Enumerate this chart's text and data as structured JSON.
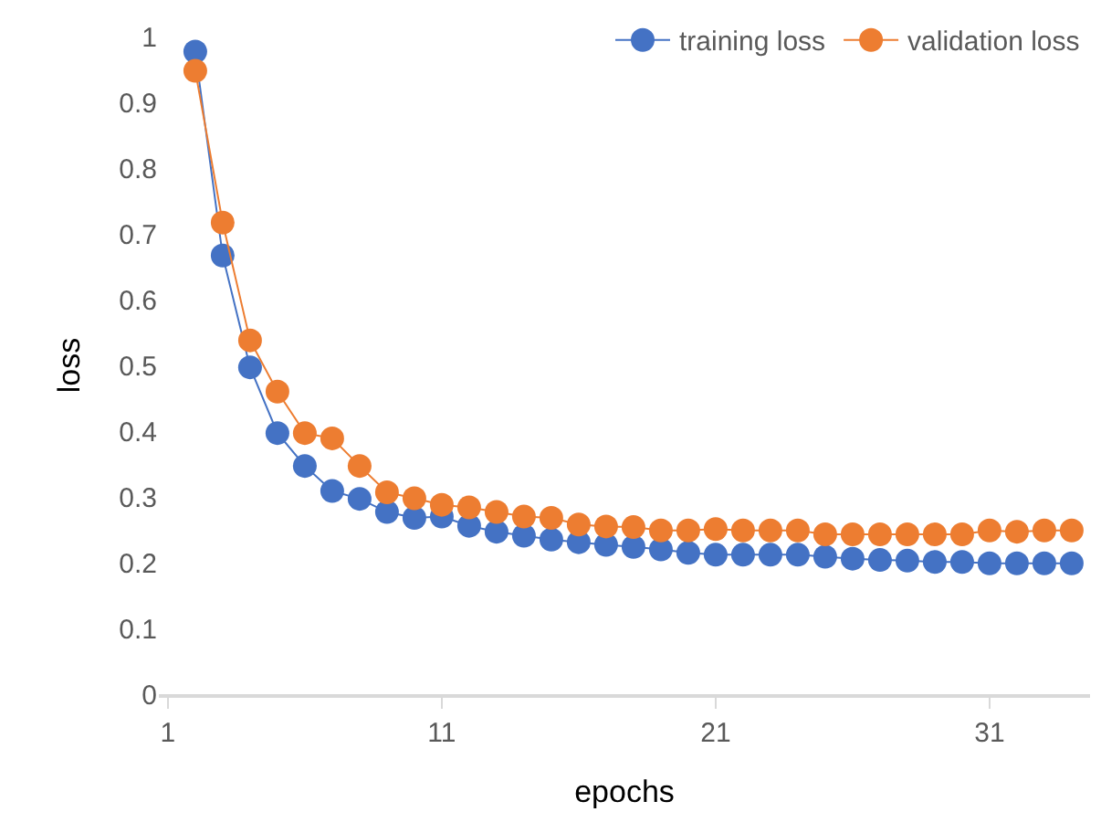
{
  "chart_data": {
    "type": "line",
    "xlabel": "epochs",
    "ylabel": "loss",
    "x": [
      2,
      3,
      4,
      5,
      6,
      7,
      8,
      9,
      10,
      11,
      12,
      13,
      14,
      15,
      16,
      17,
      18,
      19,
      20,
      21,
      22,
      23,
      24,
      25,
      26,
      27,
      28,
      29,
      30,
      31,
      32,
      33,
      34
    ],
    "series": [
      {
        "name": "training loss",
        "color": "#4472c4",
        "values": [
          0.977,
          0.667,
          0.497,
          0.397,
          0.347,
          0.309,
          0.297,
          0.277,
          0.268,
          0.27,
          0.256,
          0.247,
          0.241,
          0.235,
          0.231,
          0.227,
          0.224,
          0.22,
          0.215,
          0.212,
          0.212,
          0.212,
          0.212,
          0.209,
          0.206,
          0.204,
          0.203,
          0.201,
          0.201,
          0.199,
          0.199,
          0.199,
          0.199
        ]
      },
      {
        "name": "validation loss",
        "color": "#ed7d31",
        "values": [
          0.948,
          0.717,
          0.538,
          0.46,
          0.397,
          0.389,
          0.347,
          0.307,
          0.298,
          0.288,
          0.284,
          0.277,
          0.27,
          0.268,
          0.258,
          0.255,
          0.254,
          0.249,
          0.249,
          0.251,
          0.249,
          0.249,
          0.249,
          0.243,
          0.243,
          0.243,
          0.243,
          0.243,
          0.243,
          0.249,
          0.247,
          0.249,
          0.249
        ]
      }
    ],
    "xlim": [
      0.67,
      34.67
    ],
    "xticks": [
      1,
      11,
      21,
      31
    ],
    "ylim": [
      0,
      1
    ],
    "yticks": [
      0,
      0.1,
      0.2,
      0.3,
      0.4,
      0.5,
      0.6,
      0.7,
      0.8,
      0.9,
      1
    ],
    "legend": "top right",
    "marker": "circle",
    "line_style": "solid"
  }
}
